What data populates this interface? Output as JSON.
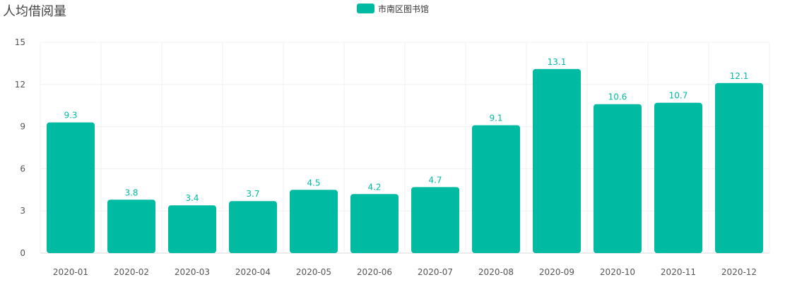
{
  "title": "人均借阅量",
  "legend": {
    "label": "市南区图书馆",
    "color": "#00BBA2"
  },
  "chart_data": {
    "type": "bar",
    "title": "人均借阅量",
    "xlabel": "",
    "ylabel": "",
    "categories": [
      "2020-01",
      "2020-02",
      "2020-03",
      "2020-04",
      "2020-05",
      "2020-06",
      "2020-07",
      "2020-08",
      "2020-09",
      "2020-10",
      "2020-11",
      "2020-12"
    ],
    "series": [
      {
        "name": "市南区图书馆",
        "values": [
          9.3,
          3.8,
          3.4,
          3.7,
          4.5,
          4.2,
          4.7,
          9.1,
          13.1,
          10.6,
          10.7,
          12.1
        ],
        "color": "#00BBA2"
      }
    ],
    "ylim": [
      0,
      15
    ],
    "yticks": [
      0,
      3,
      6,
      9,
      12,
      15
    ],
    "grid": true,
    "legend_position": "top-center",
    "data_labels": true
  }
}
